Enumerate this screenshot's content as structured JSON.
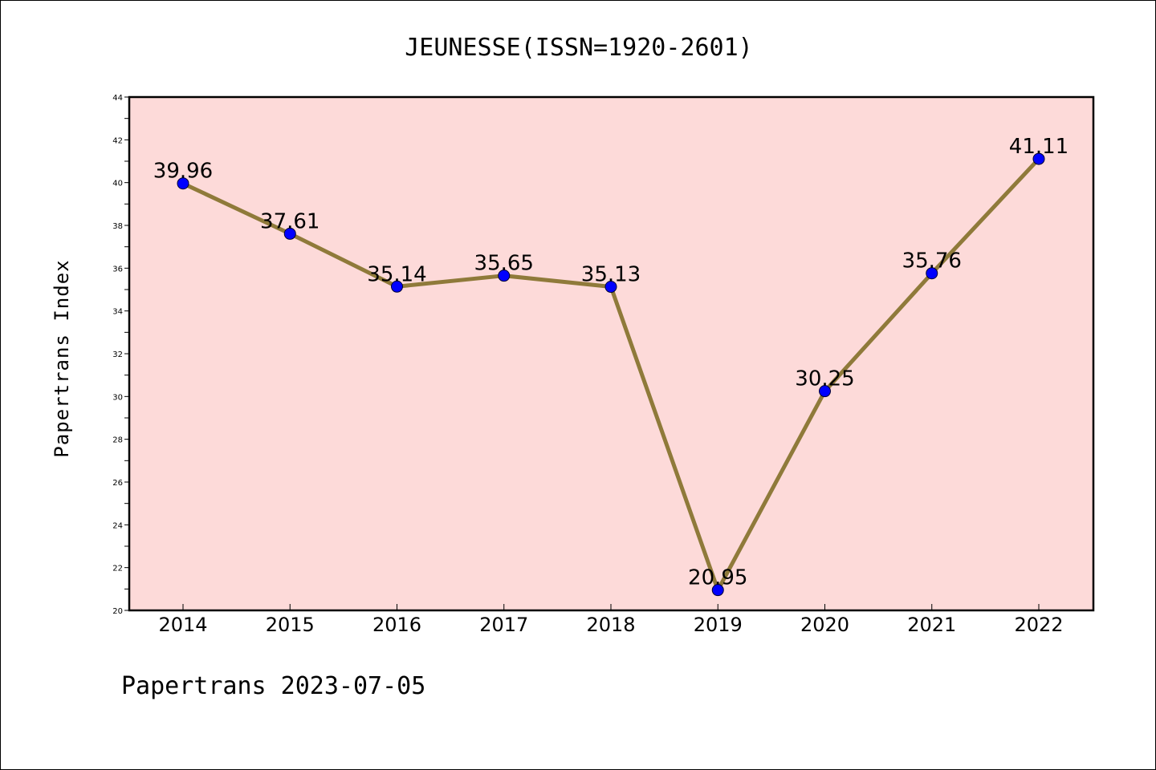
{
  "chart_data": {
    "type": "line",
    "title": "JEUNESSE(ISSN=1920-2601)",
    "xlabel": "",
    "ylabel": "Papertrans Index",
    "categories": [
      "2014",
      "2015",
      "2016",
      "2017",
      "2018",
      "2019",
      "2020",
      "2021",
      "2022"
    ],
    "series": [
      {
        "values": [
          39.96,
          37.61,
          35.14,
          35.65,
          35.13,
          20.95,
          30.25,
          35.76,
          41.11
        ],
        "data_labels": [
          "39.96",
          "37.61",
          "35.14",
          "35.65",
          "35.13",
          "20.95",
          "30.25",
          "35.76",
          "41.11"
        ]
      }
    ],
    "ylim": [
      20,
      44
    ],
    "yticks": [
      "20",
      "22",
      "24",
      "26",
      "28",
      "30",
      "32",
      "34",
      "36",
      "38",
      "40",
      "42",
      "44"
    ],
    "grid": false,
    "legend": "none"
  },
  "footer": {
    "text": "Papertrans 2023-07-05"
  },
  "colors": {
    "plot_background": "#fddad9",
    "line": "#8f7a3a",
    "marker": "#0000ff",
    "axis": "#000000"
  }
}
